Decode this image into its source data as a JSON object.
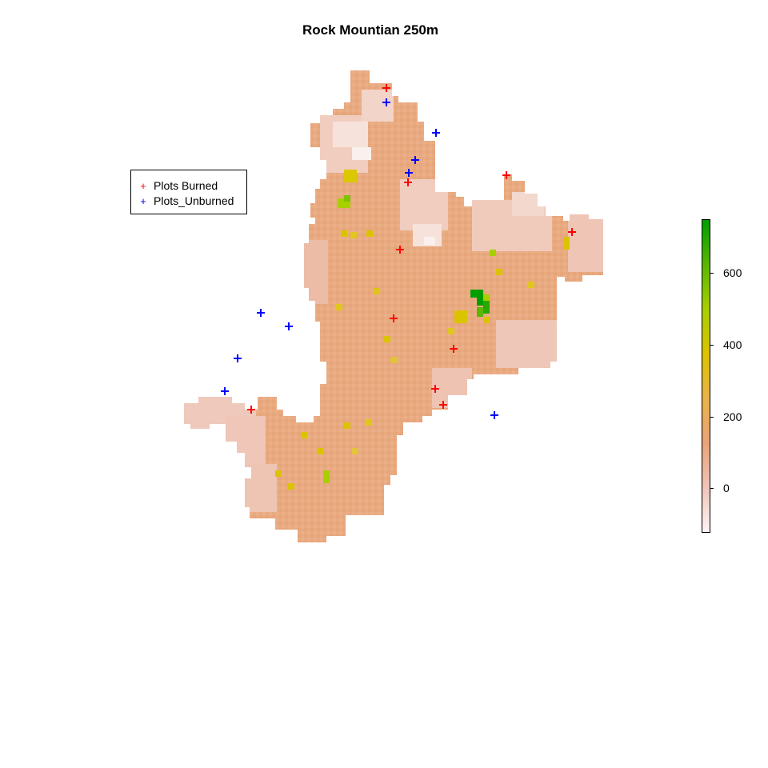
{
  "title": "Rock Mountian 250m",
  "legend": {
    "items": [
      {
        "label": "Plots Burned",
        "symbol": "+",
        "color": "#ff0000"
      },
      {
        "label": "Plots_Unburned",
        "symbol": "+",
        "color": "#0000ff"
      }
    ]
  },
  "colorbar": {
    "range": [
      -120,
      750
    ],
    "tick_values": [
      0,
      200,
      400,
      600
    ],
    "tick_labels": [
      "0",
      "200",
      "400",
      "600"
    ],
    "colors": [
      "#fdf5f5",
      "#efc4b8",
      "#e8a478",
      "#e9b34a",
      "#dcc300",
      "#a8cf00",
      "#5ab600",
      "#009e00"
    ]
  },
  "colors": {
    "raster_base": "#e9aa80",
    "burned": "#ff0000",
    "unburned": "#0000ff"
  }
}
